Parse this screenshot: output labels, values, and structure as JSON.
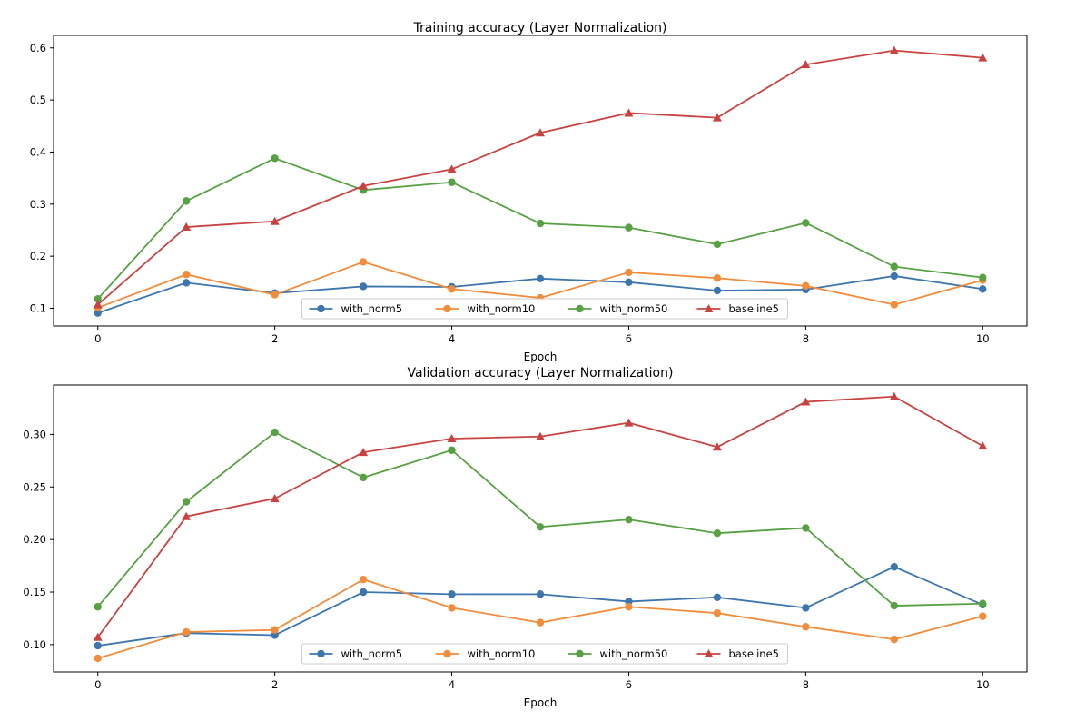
{
  "chart_data": [
    {
      "type": "line",
      "title": "Training accuracy (Layer Normalization)",
      "xlabel": "Epoch",
      "ylabel": "",
      "x": [
        0,
        1,
        2,
        3,
        4,
        5,
        6,
        7,
        8,
        9,
        10
      ],
      "xlim": [
        -0.5,
        10.5
      ],
      "ylim": [
        0.066,
        0.624
      ],
      "xticks": [
        "0",
        "2",
        "4",
        "6",
        "8",
        "10"
      ],
      "yticks": [
        "0.1",
        "0.2",
        "0.3",
        "0.4",
        "0.5",
        "0.6"
      ],
      "grid": false,
      "legend_position": "bottom-center",
      "series": [
        {
          "name": "with_norm5",
          "color": "#3d75ad",
          "marker": "circle",
          "values": [
            0.091,
            0.149,
            0.129,
            0.142,
            0.141,
            0.157,
            0.15,
            0.134,
            0.136,
            0.162,
            0.137
          ]
        },
        {
          "name": "with_norm10",
          "color": "#f08c3a",
          "marker": "circle",
          "values": [
            0.101,
            0.165,
            0.126,
            0.189,
            0.137,
            0.12,
            0.169,
            0.158,
            0.143,
            0.107,
            0.154
          ]
        },
        {
          "name": "with_norm50",
          "color": "#57a144",
          "marker": "circle",
          "values": [
            0.118,
            0.306,
            0.388,
            0.327,
            0.342,
            0.263,
            0.255,
            0.223,
            0.264,
            0.18,
            0.159
          ]
        },
        {
          "name": "baseline5",
          "color": "#c84340",
          "marker": "triangle",
          "values": [
            0.107,
            0.256,
            0.267,
            0.335,
            0.367,
            0.437,
            0.475,
            0.466,
            0.568,
            0.595,
            0.581
          ]
        }
      ]
    },
    {
      "type": "line",
      "title": "Validation accuracy (Layer Normalization)",
      "xlabel": "Epoch",
      "ylabel": "",
      "x": [
        0,
        1,
        2,
        3,
        4,
        5,
        6,
        7,
        8,
        9,
        10
      ],
      "xlim": [
        -0.5,
        10.5
      ],
      "ylim": [
        0.074,
        0.347
      ],
      "xticks": [
        "0",
        "2",
        "4",
        "6",
        "8",
        "10"
      ],
      "yticks": [
        "0.10",
        "0.15",
        "0.20",
        "0.25",
        "0.30"
      ],
      "grid": false,
      "legend_position": "bottom-center",
      "series": [
        {
          "name": "with_norm5",
          "color": "#3d75ad",
          "marker": "circle",
          "values": [
            0.099,
            0.111,
            0.109,
            0.15,
            0.148,
            0.148,
            0.141,
            0.145,
            0.135,
            0.174,
            0.138
          ]
        },
        {
          "name": "with_norm10",
          "color": "#f08c3a",
          "marker": "circle",
          "values": [
            0.087,
            0.112,
            0.114,
            0.162,
            0.135,
            0.121,
            0.136,
            0.13,
            0.117,
            0.105,
            0.127
          ]
        },
        {
          "name": "with_norm50",
          "color": "#57a144",
          "marker": "circle",
          "values": [
            0.136,
            0.236,
            0.302,
            0.259,
            0.285,
            0.212,
            0.219,
            0.206,
            0.211,
            0.137,
            0.139
          ]
        },
        {
          "name": "baseline5",
          "color": "#c84340",
          "marker": "triangle",
          "values": [
            0.107,
            0.222,
            0.239,
            0.283,
            0.296,
            0.298,
            0.311,
            0.288,
            0.331,
            0.336,
            0.289
          ]
        }
      ]
    }
  ]
}
